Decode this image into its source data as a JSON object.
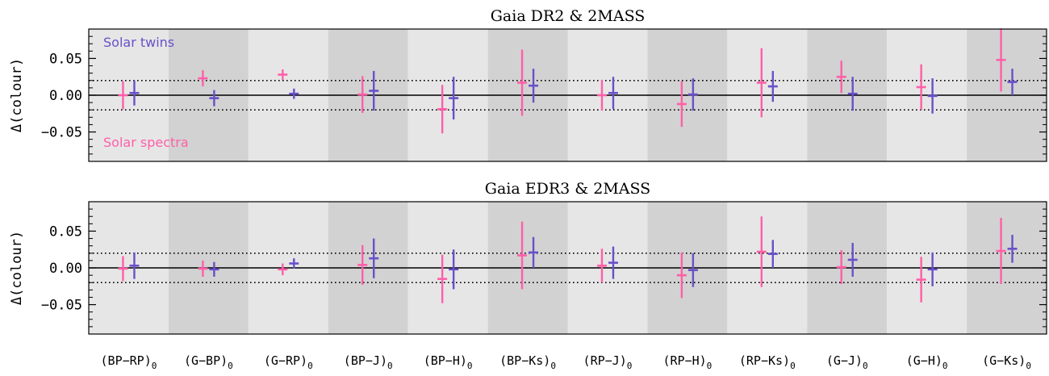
{
  "colors": {
    "solar_spectra": "#ff5fa8",
    "solar_twins": "#6a50c8",
    "band_light": "#e6e6e6",
    "band_dark": "#d2d2d2"
  },
  "chart_data": [
    {
      "type": "errorbar",
      "title": "Gaia DR2 & 2MASS",
      "ylabel": "Δ(colour)",
      "ylim": [
        -0.09,
        0.09
      ],
      "yticks": [
        "0.05",
        "0.00",
        "−0.05"
      ],
      "reference_lines": [
        0.0,
        0.02,
        -0.02
      ],
      "grid": false,
      "annotations": [
        "Solar twins",
        "Solar spectra"
      ],
      "categories": [
        "(BP−RP)",
        "(G−BP)",
        "(G−RP)",
        "(BP−J)",
        "(BP−H)",
        "(BP−Ks)",
        "(RP−J)",
        "(RP−H)",
        "(RP−Ks)",
        "(G−J)",
        "(G−H)",
        "(G−Ks)"
      ],
      "series": [
        {
          "name": "Solar spectra",
          "values": [
            0.0,
            0.023,
            0.028,
            0.001,
            -0.019,
            0.017,
            0.0,
            -0.012,
            0.017,
            0.025,
            0.011,
            0.048
          ],
          "errors": [
            0.019,
            0.011,
            0.007,
            0.025,
            0.033,
            0.045,
            0.021,
            0.031,
            0.047,
            0.022,
            0.031,
            0.043
          ]
        },
        {
          "name": "Solar twins",
          "values": [
            0.003,
            -0.004,
            0.002,
            0.006,
            -0.004,
            0.013,
            0.003,
            0.001,
            0.012,
            0.002,
            -0.001,
            0.018
          ],
          "errors": [
            0.017,
            0.011,
            0.007,
            0.027,
            0.029,
            0.023,
            0.022,
            0.022,
            0.021,
            0.023,
            0.024,
            0.018
          ]
        }
      ]
    },
    {
      "type": "errorbar",
      "title": "Gaia EDR3 & 2MASS",
      "ylabel": "Δ(colour)",
      "ylim": [
        -0.09,
        0.09
      ],
      "yticks": [
        "0.05",
        "0.00",
        "−0.05"
      ],
      "reference_lines": [
        0.0,
        0.02,
        -0.02
      ],
      "grid": false,
      "categories": [
        "(BP−RP)",
        "(G−BP)",
        "(G−RP)",
        "(BP−J)",
        "(BP−H)",
        "(BP−Ks)",
        "(RP−J)",
        "(RP−H)",
        "(RP−Ks)",
        "(G−J)",
        "(G−H)",
        "(G−Ks)"
      ],
      "series": [
        {
          "name": "Solar spectra",
          "values": [
            -0.001,
            -0.001,
            -0.002,
            0.004,
            -0.015,
            0.017,
            0.003,
            -0.01,
            0.022,
            0.001,
            -0.016,
            0.023
          ],
          "errors": [
            0.017,
            0.011,
            0.008,
            0.027,
            0.033,
            0.046,
            0.023,
            0.031,
            0.048,
            0.023,
            0.031,
            0.045
          ]
        },
        {
          "name": "Solar twins",
          "values": [
            0.003,
            -0.002,
            0.006,
            0.013,
            -0.002,
            0.021,
            0.007,
            -0.003,
            0.019,
            0.011,
            -0.002,
            0.026
          ],
          "errors": [
            0.018,
            0.01,
            0.007,
            0.027,
            0.027,
            0.021,
            0.022,
            0.023,
            0.019,
            0.023,
            0.023,
            0.019
          ]
        }
      ]
    }
  ],
  "x_categories": [
    "(BP−RP)",
    "(G−BP)",
    "(G−RP)",
    "(BP−J)",
    "(BP−H)",
    "(BP−Ks)",
    "(RP−J)",
    "(RP−H)",
    "(RP−Ks)",
    "(G−J)",
    "(G−H)",
    "(G−Ks)"
  ],
  "x_subscript": "0"
}
